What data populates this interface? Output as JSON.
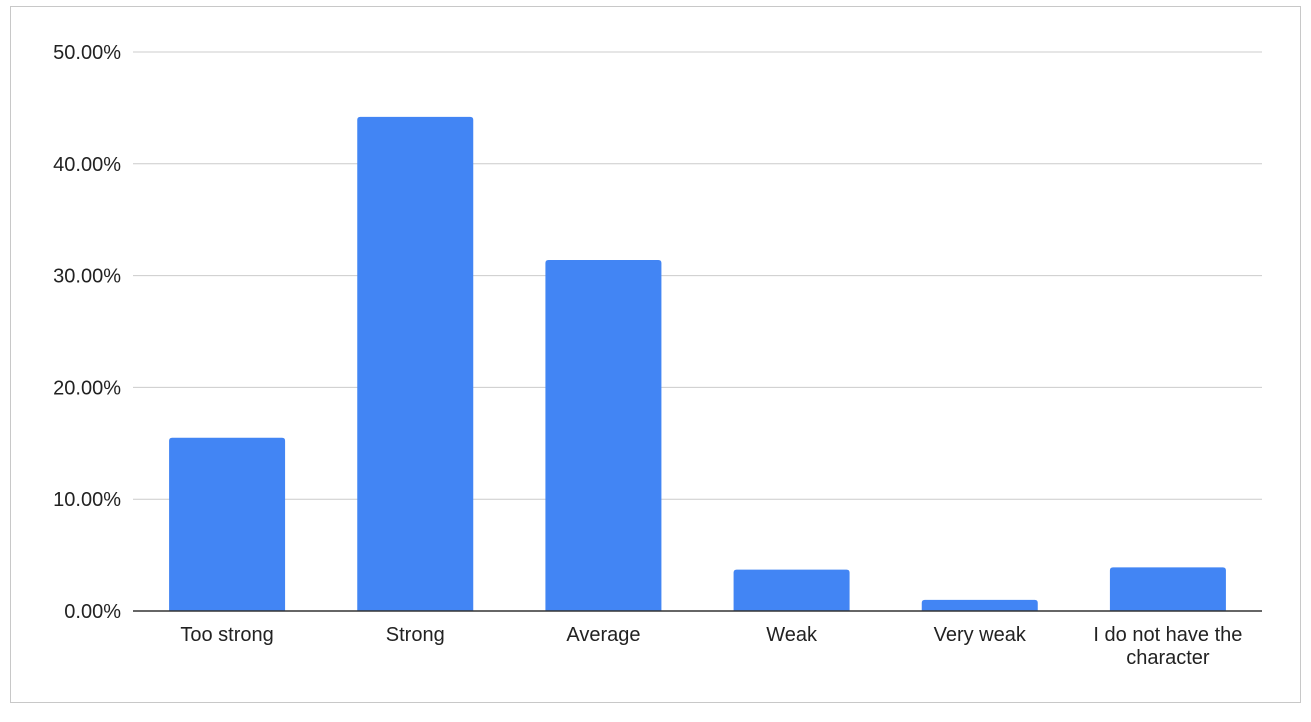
{
  "chart_data": {
    "type": "bar",
    "title": "",
    "xlabel": "",
    "ylabel": "",
    "categories": [
      "Too strong",
      "Strong",
      "Average",
      "Weak",
      "Very weak",
      "I do not have the character"
    ],
    "values": [
      15.5,
      44.2,
      31.4,
      3.7,
      1.0,
      3.9
    ],
    "ylim": [
      0,
      50
    ],
    "yticks": [
      "0.00%",
      "10.00%",
      "20.00%",
      "30.00%",
      "40.00%",
      "50.00%"
    ],
    "grid": true,
    "legend": "none",
    "colors": {
      "bar": "#4285f4",
      "grid": "#cccccc",
      "axis": "#333333"
    }
  }
}
